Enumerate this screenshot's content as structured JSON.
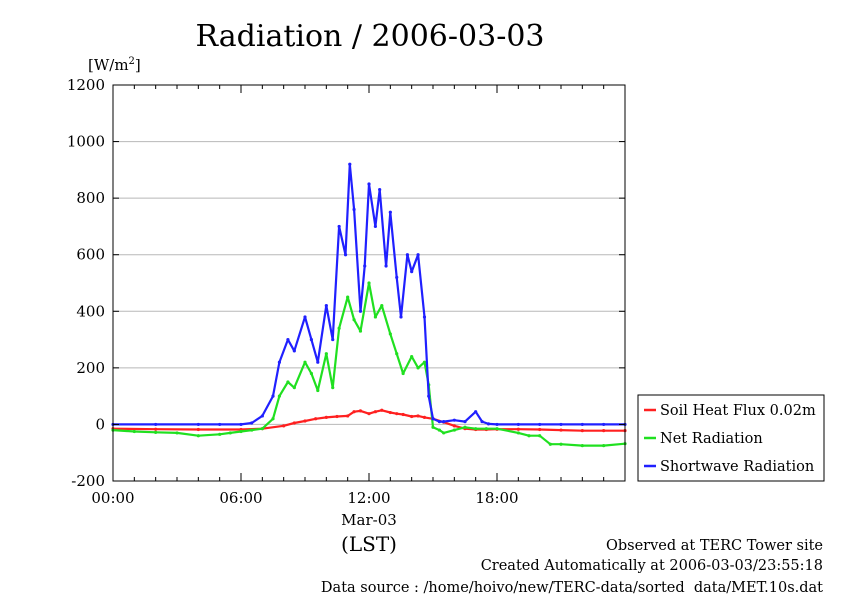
{
  "chart_data": {
    "type": "line",
    "title": "Radiation / 2006-03-03",
    "ylabel_unit": "[W/m",
    "ylabel_unit_sup": "2",
    "ylabel_unit_close": "]",
    "ylim": [
      -200,
      1200
    ],
    "yticks": [
      -200,
      0,
      200,
      400,
      600,
      800,
      1000,
      1200
    ],
    "yticks_labels": [
      "-200",
      "0",
      "200",
      "400",
      "600",
      "800",
      "1000",
      "1200"
    ],
    "xlim_hours": [
      0,
      24
    ],
    "xticks": [
      {
        "hour": 0,
        "label": "00:00"
      },
      {
        "hour": 6,
        "label": "06:00"
      },
      {
        "hour": 12,
        "label": "12:00"
      },
      {
        "hour": 18,
        "label": "18:00"
      }
    ],
    "xdate_label": "Mar-03",
    "xunit_label": "(LST)",
    "grid": true,
    "legend_position": "right, lower",
    "series": [
      {
        "name": "Soil Heat Flux 0.02m",
        "color": "#ff2020",
        "x": [
          0,
          2,
          4,
          6,
          7,
          8,
          8.5,
          9,
          9.5,
          10,
          10.5,
          11,
          11.3,
          11.6,
          12,
          12.3,
          12.6,
          13,
          13.3,
          13.6,
          14,
          14.3,
          14.6,
          15,
          15.5,
          16,
          16.5,
          17,
          17.5,
          18,
          19,
          20,
          21,
          22,
          23,
          24
        ],
        "values": [
          -15,
          -17,
          -18,
          -18,
          -15,
          -5,
          5,
          12,
          20,
          25,
          28,
          30,
          45,
          48,
          38,
          45,
          50,
          42,
          38,
          35,
          28,
          30,
          25,
          20,
          8,
          -5,
          -15,
          -18,
          -18,
          -17,
          -17,
          -18,
          -20,
          -22,
          -22,
          -22
        ]
      },
      {
        "name": "Net Radiation",
        "color": "#20e020",
        "x": [
          0,
          1,
          2,
          3,
          4,
          5,
          5.5,
          6,
          6.5,
          7,
          7.5,
          7.8,
          8.2,
          8.5,
          9,
          9.3,
          9.6,
          10,
          10.3,
          10.6,
          11,
          11.3,
          11.6,
          12,
          12.3,
          12.6,
          13,
          13.3,
          13.6,
          14,
          14.3,
          14.6,
          14.8,
          15,
          15.3,
          15.5,
          16,
          16.5,
          17,
          17.5,
          18,
          19,
          19.5,
          20,
          20.5,
          21,
          22,
          23,
          24
        ],
        "values": [
          -20,
          -25,
          -28,
          -30,
          -40,
          -35,
          -30,
          -25,
          -20,
          -15,
          20,
          100,
          150,
          130,
          220,
          180,
          120,
          250,
          130,
          340,
          450,
          370,
          330,
          500,
          380,
          420,
          320,
          250,
          180,
          240,
          200,
          220,
          140,
          -10,
          -20,
          -30,
          -20,
          -10,
          -15,
          -15,
          -15,
          -30,
          -40,
          -40,
          -70,
          -70,
          -75,
          -75,
          -68
        ]
      },
      {
        "name": "Shortwave Radiation",
        "color": "#2020ff",
        "x": [
          0,
          2,
          4,
          5,
          6,
          6.5,
          7,
          7.5,
          7.8,
          8.2,
          8.5,
          9,
          9.3,
          9.6,
          10,
          10.3,
          10.6,
          10.9,
          11.1,
          11.3,
          11.6,
          11.8,
          12,
          12.3,
          12.5,
          12.8,
          13,
          13.3,
          13.5,
          13.8,
          14,
          14.3,
          14.6,
          14.8,
          15,
          15.3,
          15.5,
          16,
          16.5,
          17,
          17.3,
          17.6,
          18,
          19,
          20,
          21,
          22,
          23,
          24
        ],
        "values": [
          0,
          0,
          0,
          0,
          0,
          5,
          30,
          100,
          220,
          300,
          260,
          380,
          300,
          220,
          420,
          300,
          700,
          600,
          920,
          760,
          400,
          560,
          850,
          700,
          830,
          560,
          750,
          520,
          380,
          600,
          540,
          600,
          380,
          100,
          20,
          10,
          10,
          15,
          10,
          45,
          10,
          2,
          0,
          0,
          0,
          0,
          0,
          0,
          0
        ]
      }
    ]
  },
  "footer": {
    "line1": "Observed at TERC Tower site",
    "line2": "Created Automatically at 2006-03-03/23:55:18",
    "line3": "Data source : /home/hoivo/new/TERC-data/sorted  data/MET.10s.dat"
  }
}
